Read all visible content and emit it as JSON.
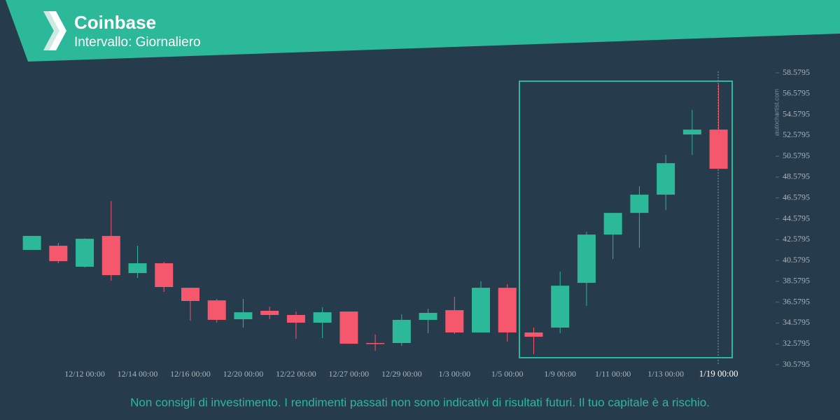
{
  "header": {
    "title": "Coinbase",
    "subtitle": "Intervallo: Giornaliero"
  },
  "chart_data": {
    "type": "candlestick",
    "categories": [
      null,
      null,
      "12/12 00:00",
      null,
      "12/14 00:00",
      null,
      "12/16 00:00",
      null,
      "12/20 00:00",
      null,
      "12/22 00:00",
      null,
      "12/27 00:00",
      null,
      "12/29 00:00",
      null,
      "1/3 00:00",
      null,
      "1/5 00:00",
      null,
      "1/9 00:00",
      null,
      "1/11 00:00",
      null,
      "1/13 00:00",
      null,
      "1/19 00:00"
    ],
    "open": [
      41.59,
      41.99,
      39.98,
      42.93,
      39.37,
      40.31,
      37.96,
      36.75,
      34.94,
      35.75,
      35.35,
      34.61,
      35.68,
      32.66,
      32.66,
      34.88,
      35.81,
      33.67,
      37.96,
      33.67,
      34.14,
      38.43,
      43.06,
      45.14,
      46.89,
      52.66,
      53.13
    ],
    "high": [
      42.93,
      42.26,
      42.7,
      46.28,
      41.99,
      40.45,
      37.96,
      36.89,
      36.89,
      36.15,
      35.68,
      36.08,
      35.68,
      33.47,
      35.41,
      35.95,
      37.09,
      38.57,
      38.3,
      34.14,
      39.51,
      43.33,
      45.14,
      47.69,
      50.71,
      55.01,
      57.49
    ],
    "low": [
      41.59,
      40.31,
      39.9,
      38.63,
      38.9,
      37.56,
      34.81,
      34.61,
      34.14,
      34.94,
      33.06,
      33.13,
      32.59,
      31.92,
      32.39,
      33.6,
      33.53,
      33.67,
      32.79,
      31.59,
      33.6,
      36.22,
      40.71,
      41.79,
      45.41,
      50.71,
      49.37
    ],
    "close": [
      42.93,
      40.51,
      42.66,
      39.17,
      40.31,
      38.03,
      36.69,
      34.88,
      35.61,
      35.35,
      34.61,
      35.61,
      32.59,
      32.59,
      34.88,
      35.55,
      33.67,
      37.96,
      33.67,
      33.26,
      38.16,
      43.06,
      45.14,
      46.89,
      49.91,
      53.13,
      49.37
    ],
    "up_color": "#2bb99a",
    "down_color": "#f5576c",
    "ylim": [
      30.5795,
      58.5795
    ],
    "yticks": [
      30.5795,
      32.5795,
      34.5795,
      36.5795,
      38.5795,
      40.5795,
      42.5795,
      44.5795,
      46.5795,
      48.5795,
      50.5795,
      52.5795,
      54.5795,
      56.5795,
      58.5795
    ],
    "watermark": "autochartist.com"
  },
  "footer": "Non consigli di investimento. I rendimenti passati non sono indicativi di risultati futuri. Il tuo capitale è a rischio."
}
